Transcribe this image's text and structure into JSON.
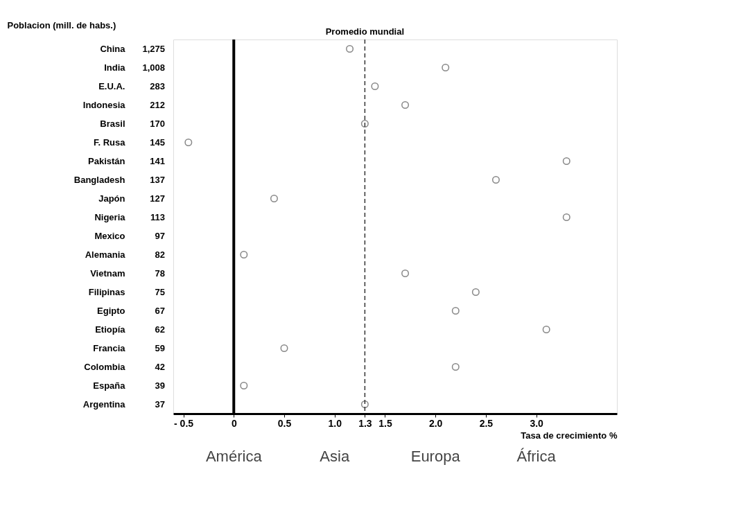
{
  "chart_data": {
    "type": "scatter",
    "orientation": "horizontal",
    "ylabel": "Poblacion (mill. de habs.)",
    "xlabel": "Tasa de crecimiento %",
    "categories": [
      "China",
      "India",
      "E.U.A.",
      "Indonesia",
      "Brasil",
      "F. Rusa",
      "Pakistán",
      "Bangladesh",
      "Japón",
      "Nigeria",
      "Mexico",
      "Alemania",
      "Vietnam",
      "Filipinas",
      "Egipto",
      "Etiopía",
      "Francia",
      "Colombia",
      "España",
      "Argentina"
    ],
    "y2_categories": [
      "1,275",
      "1,008",
      "283",
      "212",
      "170",
      "145",
      "141",
      "137",
      "127",
      "113",
      "97",
      "82",
      "78",
      "75",
      "67",
      "62",
      "59",
      "42",
      "39",
      "37"
    ],
    "values": [
      1.15,
      2.1,
      1.4,
      1.7,
      1.3,
      -0.45,
      3.3,
      2.6,
      0.4,
      3.3,
      null,
      0.1,
      1.7,
      2.4,
      2.2,
      3.1,
      0.5,
      2.2,
      0.1,
      1.3
    ],
    "color": "#555555",
    "marker": "circle",
    "xlim": [
      -0.6,
      3.8
    ],
    "xticks": [
      {
        "value": -0.5,
        "label": "- 0.5"
      },
      0,
      0.5,
      {
        "value": 1.0,
        "label": "1.0"
      },
      1.3,
      1.5,
      {
        "value": 2.0,
        "label": "2.0"
      },
      2.5,
      {
        "value": 3.0,
        "label": "3.0"
      }
    ],
    "ref_lines": [
      {
        "axis": "x",
        "value": 1.3,
        "label": "Promedio mundial",
        "color": "#333333",
        "line_style": "dashed"
      },
      {
        "axis": "x",
        "value": 0,
        "label": null,
        "color": "#000000",
        "line_style": "solid"
      }
    ],
    "annotations": [
      "América",
      "Asia",
      "Europa",
      "África"
    ],
    "grid": false
  }
}
